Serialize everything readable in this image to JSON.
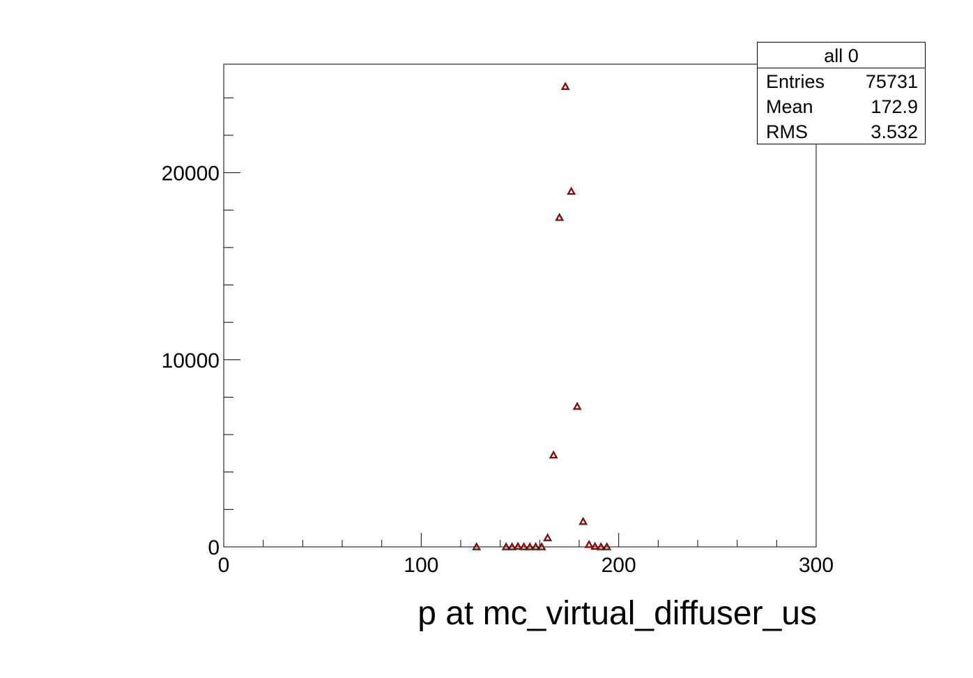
{
  "chart_data": {
    "type": "scatter",
    "xlabel": "p at mc_virtual_diffuser_us",
    "ylabel": "",
    "xlim": [
      0,
      300
    ],
    "ylim": [
      0,
      25800
    ],
    "x_ticks": [
      "0",
      "100",
      "200",
      "300"
    ],
    "y_ticks": [
      "0",
      "10000",
      "20000"
    ],
    "x_tick_values": [
      0,
      100,
      200,
      300
    ],
    "y_tick_values": [
      0,
      10000,
      20000
    ],
    "marker": "open-triangle",
    "marker_color": "#cc0000",
    "series": [
      {
        "x": [
          128,
          143,
          146,
          149,
          152,
          155,
          158,
          161,
          164,
          167,
          170,
          173,
          176,
          179,
          182,
          185,
          188,
          191,
          194
        ],
        "values": [
          0,
          0,
          0,
          20,
          0,
          0,
          0,
          0,
          480,
          4900,
          17600,
          24600,
          19000,
          7500,
          1350,
          120,
          20,
          0,
          0
        ]
      }
    ]
  },
  "stats": {
    "title": "all 0",
    "rows": [
      {
        "label": "Entries",
        "value": "75731"
      },
      {
        "label": "Mean",
        "value": "172.9"
      },
      {
        "label": "RMS",
        "value": "3.532"
      }
    ]
  }
}
